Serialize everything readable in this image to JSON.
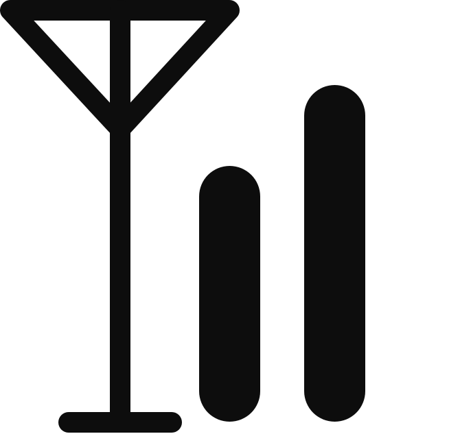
{
  "icon": {
    "name": "signal-antenna-icon",
    "color": "#0d0d0d",
    "background": "#ffffff"
  }
}
